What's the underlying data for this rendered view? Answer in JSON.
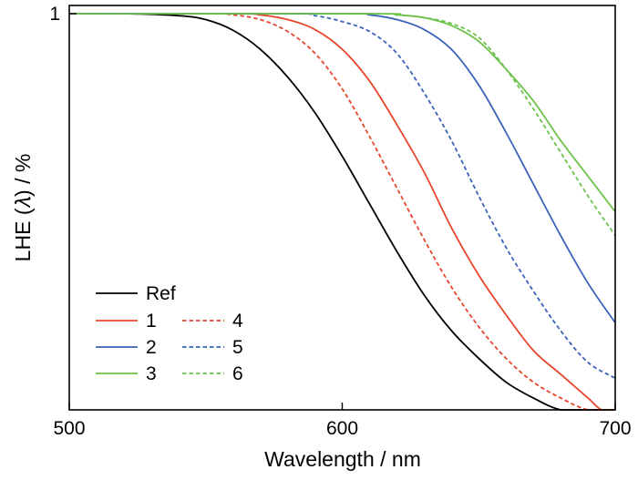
{
  "chart_data": {
    "type": "line",
    "xlabel": "Wavelength / nm",
    "ylabel": "LHE (𝜆) / %",
    "xlim": [
      500,
      700
    ],
    "ylim": [
      0,
      1
    ],
    "x_ticks": [
      "500",
      "600",
      "700"
    ],
    "y_ticks": [
      "1"
    ],
    "grid": false,
    "legend_position": "bottom-left",
    "series": [
      {
        "name": "Ref",
        "color": "#000000",
        "dash": "solid",
        "x": [
          500,
          520,
          540,
          550,
          560,
          570,
          580,
          590,
          600,
          610,
          620,
          630,
          640,
          650,
          660,
          670,
          680,
          690,
          700
        ],
        "y": [
          1.0,
          1.0,
          0.995,
          0.985,
          0.958,
          0.91,
          0.84,
          0.75,
          0.64,
          0.52,
          0.4,
          0.29,
          0.2,
          0.13,
          0.07,
          0.03,
          0.0,
          0.0,
          0.0
        ]
      },
      {
        "name": "1",
        "color": "#e8452c",
        "dash": "solid",
        "x": [
          500,
          560,
          570,
          580,
          590,
          600,
          610,
          620,
          630,
          640,
          650,
          660,
          670,
          680,
          690,
          695,
          700
        ],
        "y": [
          1.0,
          1.0,
          0.997,
          0.985,
          0.96,
          0.91,
          0.83,
          0.72,
          0.6,
          0.46,
          0.34,
          0.24,
          0.15,
          0.09,
          0.03,
          0.0,
          0.0
        ]
      },
      {
        "name": "2",
        "color": "#3a62b8",
        "dash": "solid",
        "x": [
          500,
          600,
          610,
          620,
          630,
          640,
          650,
          660,
          670,
          680,
          690,
          700
        ],
        "y": [
          1.0,
          1.0,
          0.997,
          0.985,
          0.96,
          0.91,
          0.82,
          0.7,
          0.57,
          0.44,
          0.32,
          0.22
        ]
      },
      {
        "name": "3",
        "color": "#6cc24a",
        "dash": "solid",
        "x": [
          500,
          610,
          620,
          630,
          640,
          650,
          660,
          670,
          680,
          690,
          700
        ],
        "y": [
          1.0,
          1.0,
          0.997,
          0.99,
          0.97,
          0.93,
          0.86,
          0.78,
          0.68,
          0.59,
          0.5
        ]
      },
      {
        "name": "4",
        "color": "#e8452c",
        "dash": "dashed",
        "x": [
          500,
          550,
          560,
          570,
          580,
          590,
          600,
          610,
          620,
          630,
          640,
          650,
          660,
          670,
          680,
          690,
          700
        ],
        "y": [
          1.0,
          1.0,
          0.997,
          0.985,
          0.955,
          0.9,
          0.81,
          0.69,
          0.56,
          0.43,
          0.31,
          0.21,
          0.13,
          0.07,
          0.03,
          0.0,
          0.0
        ]
      },
      {
        "name": "5",
        "color": "#3a62b8",
        "dash": "dashed",
        "x": [
          500,
          580,
          590,
          600,
          610,
          620,
          630,
          640,
          650,
          660,
          670,
          680,
          690,
          700
        ],
        "y": [
          1.0,
          1.0,
          0.995,
          0.98,
          0.955,
          0.9,
          0.8,
          0.68,
          0.54,
          0.41,
          0.3,
          0.2,
          0.12,
          0.08
        ]
      },
      {
        "name": "6",
        "color": "#6cc24a",
        "dash": "dashed",
        "x": [
          500,
          610,
          620,
          630,
          640,
          650,
          660,
          670,
          680,
          690,
          700
        ],
        "y": [
          1.0,
          1.0,
          0.997,
          0.99,
          0.975,
          0.94,
          0.86,
          0.76,
          0.65,
          0.54,
          0.44
        ]
      }
    ]
  }
}
